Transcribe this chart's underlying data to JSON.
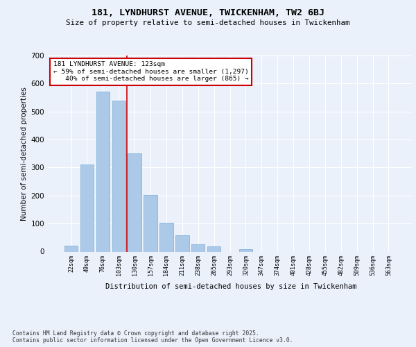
{
  "title1": "181, LYNDHURST AVENUE, TWICKENHAM, TW2 6BJ",
  "title2": "Size of property relative to semi-detached houses in Twickenham",
  "xlabel": "Distribution of semi-detached houses by size in Twickenham",
  "ylabel": "Number of semi-detached properties",
  "bar_color": "#adc9e8",
  "bar_edge_color": "#7aadd4",
  "categories": [
    "22sqm",
    "49sqm",
    "76sqm",
    "103sqm",
    "130sqm",
    "157sqm",
    "184sqm",
    "211sqm",
    "238sqm",
    "265sqm",
    "293sqm",
    "320sqm",
    "347sqm",
    "374sqm",
    "401sqm",
    "428sqm",
    "455sqm",
    "482sqm",
    "509sqm",
    "536sqm",
    "563sqm"
  ],
  "values": [
    22,
    311,
    572,
    538,
    350,
    202,
    103,
    57,
    25,
    19,
    0,
    9,
    0,
    0,
    0,
    0,
    0,
    0,
    0,
    0,
    0
  ],
  "ylim": [
    0,
    700
  ],
  "yticks": [
    0,
    100,
    200,
    300,
    400,
    500,
    600,
    700
  ],
  "annotation_text": "181 LYNDHURST AVENUE: 123sqm\n← 59% of semi-detached houses are smaller (1,297)\n   40% of semi-detached houses are larger (865) →",
  "footer_text": "Contains HM Land Registry data © Crown copyright and database right 2025.\nContains public sector information licensed under the Open Government Licence v3.0.",
  "background_color": "#eaf1fb",
  "grid_color": "#ffffff",
  "annotation_box_color": "#ffffff",
  "annotation_box_edge": "#cc0000",
  "red_line_color": "#cc0000"
}
